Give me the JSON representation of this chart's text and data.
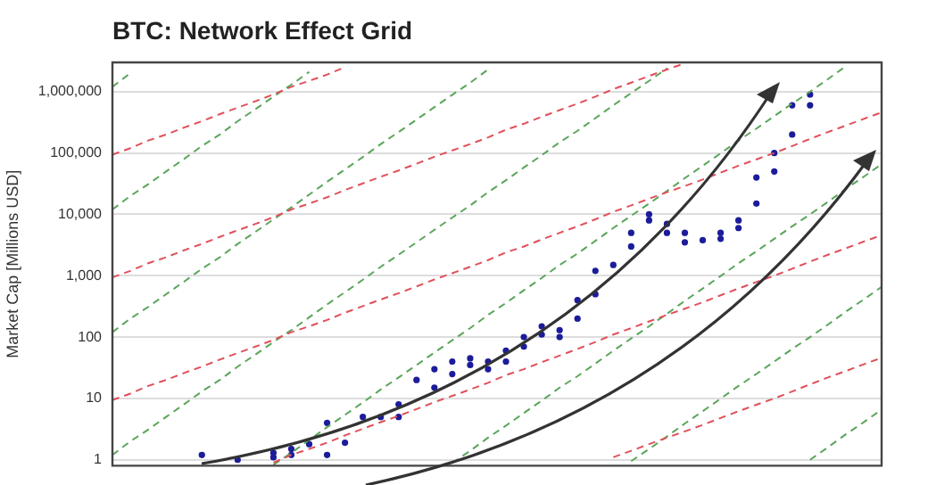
{
  "chart_data": {
    "type": "scatter",
    "title": "BTC: Network Effect Grid",
    "ylabel": "Market Cap [Millions USD]",
    "categories": [
      null,
      null,
      null,
      null,
      null,
      null,
      null,
      null,
      null,
      null,
      null,
      null,
      null,
      null,
      null,
      null,
      null,
      null,
      null,
      null,
      null,
      null,
      null,
      null,
      null,
      null,
      null,
      null,
      null,
      null,
      null,
      null,
      null,
      null,
      null,
      null,
      null,
      null,
      null,
      null,
      null,
      null,
      null,
      null
    ],
    "log": "y",
    "grid": "y",
    "legend": false,
    "tick_labels": "y",
    "marker": "circle",
    "ylim": [
      0.8,
      3000000
    ],
    "yticks": [
      {
        "value": 1,
        "label": "1"
      },
      {
        "value": 10,
        "label": "10"
      },
      {
        "value": 100,
        "label": "100"
      },
      {
        "value": 1000,
        "label": "1,000"
      },
      {
        "value": 10000,
        "label": "10,000"
      },
      {
        "value": 100000,
        "label": "100,000"
      },
      {
        "value": 1000000,
        "label": "1,000,000"
      }
    ],
    "series": [
      {
        "type": "line",
        "color": "#e0505a",
        "line_style": "dashed",
        "marker": "none",
        "values": [
          94000,
          120000,
          160000,
          200000,
          260000,
          330000,
          430000,
          550000,
          700000,
          900000,
          1200000,
          1500000,
          1900000,
          2500000,
          null,
          null,
          null,
          null,
          null,
          null,
          null,
          null,
          null,
          null,
          null,
          null,
          null,
          null,
          null,
          null,
          null,
          null,
          null,
          null,
          null,
          null,
          null,
          null,
          null,
          null,
          null,
          null,
          null,
          null
        ]
      },
      {
        "type": "line",
        "color": "#e0505a",
        "line_style": "dashed",
        "marker": "none",
        "values": [
          940,
          1200,
          1600,
          2000,
          2600,
          3300,
          4300,
          5500,
          7000,
          9000,
          12000,
          15000,
          19000,
          25000,
          32000,
          41000,
          52000,
          67000,
          87000,
          110000,
          140000,
          180000,
          240000,
          300000,
          390000,
          500000,
          640000,
          830000,
          1100000,
          1400000,
          1800000,
          2300000,
          2900000,
          null,
          null,
          null,
          null,
          null,
          null,
          null,
          null,
          null,
          null,
          null
        ]
      },
      {
        "type": "line",
        "color": "#e0505a",
        "line_style": "dashed",
        "marker": "none",
        "values": [
          9.4,
          12,
          16,
          20,
          26,
          33,
          43,
          55,
          70,
          90,
          120,
          150,
          190,
          250,
          320,
          410,
          520,
          670,
          870,
          1100,
          1400,
          1800,
          2400,
          3000,
          3900,
          5000,
          6400,
          8300,
          11000,
          14000,
          18000,
          23000,
          29000,
          37000,
          48000,
          62000,
          79000,
          100000,
          130000,
          170000,
          220000,
          280000,
          360000,
          460000
        ]
      },
      {
        "type": "line",
        "color": "#e0505a",
        "line_style": "dashed",
        "marker": "none",
        "values": [
          null,
          null,
          null,
          null,
          null,
          null,
          null,
          null,
          null,
          0.9,
          1.2,
          1.5,
          1.9,
          2.5,
          3.2,
          4.1,
          5.2,
          6.7,
          8.7,
          11,
          14,
          18,
          24,
          30,
          39,
          50,
          64,
          83,
          110,
          140,
          180,
          230,
          290,
          370,
          480,
          620,
          790,
          1000,
          1300,
          1700,
          2200,
          2800,
          3600,
          4600
        ]
      },
      {
        "type": "line",
        "color": "#e0505a",
        "line_style": "dashed",
        "marker": "none",
        "values": [
          null,
          null,
          null,
          null,
          null,
          null,
          null,
          null,
          null,
          null,
          null,
          null,
          null,
          null,
          null,
          null,
          null,
          null,
          null,
          null,
          null,
          null,
          null,
          null,
          null,
          null,
          null,
          null,
          1.1,
          1.4,
          1.8,
          2.3,
          2.9,
          3.7,
          4.8,
          6.2,
          7.9,
          10,
          13,
          17,
          22,
          28,
          36,
          46
        ]
      },
      {
        "type": "line",
        "color": "#5aa55a",
        "line_style": "dashed",
        "marker": "none",
        "values": [
          1200000,
          2000000,
          null,
          null,
          null,
          null,
          null,
          null,
          null,
          null,
          null,
          null,
          null,
          null,
          null,
          null,
          null,
          null,
          null,
          null,
          null,
          null,
          null,
          null,
          null,
          null,
          null,
          null,
          null,
          null,
          null,
          null,
          null,
          null,
          null,
          null,
          null,
          null,
          null,
          null,
          null,
          null,
          null,
          null
        ]
      },
      {
        "type": "line",
        "color": "#5aa55a",
        "line_style": "dashed",
        "marker": "none",
        "values": [
          12000,
          20000,
          31000,
          50000,
          80000,
          130000,
          200000,
          330000,
          520000,
          830000,
          1300000,
          2100000,
          null,
          null,
          null,
          null,
          null,
          null,
          null,
          null,
          null,
          null,
          null,
          null,
          null,
          null,
          null,
          null,
          null,
          null,
          null,
          null,
          null,
          null,
          null,
          null,
          null,
          null,
          null,
          null,
          null,
          null,
          null,
          null
        ]
      },
      {
        "type": "line",
        "color": "#5aa55a",
        "line_style": "dashed",
        "marker": "none",
        "values": [
          120,
          200,
          310,
          500,
          800,
          1300,
          2000,
          3300,
          5200,
          8300,
          13000,
          21000,
          34000,
          54000,
          86000,
          140000,
          220000,
          350000,
          560000,
          890000,
          1400000,
          2300000,
          null,
          null,
          null,
          null,
          null,
          null,
          null,
          null,
          null,
          null,
          null,
          null,
          null,
          null,
          null,
          null,
          null,
          null,
          null,
          null,
          null,
          null
        ]
      },
      {
        "type": "line",
        "color": "#5aa55a",
        "line_style": "dashed",
        "marker": "none",
        "values": [
          1.2,
          2.0,
          3.1,
          5.0,
          8.0,
          13,
          20,
          33,
          52,
          83,
          130,
          210,
          340,
          540,
          860,
          1400,
          2200,
          3500,
          5600,
          8900,
          14000,
          23000,
          36000,
          58000,
          92000,
          150000,
          230000,
          370000,
          600000,
          950000,
          1500000,
          2400000,
          null,
          null,
          null,
          null,
          null,
          null,
          null,
          null,
          null,
          null,
          null,
          null
        ]
      },
      {
        "type": "line",
        "color": "#5aa55a",
        "line_style": "dashed",
        "marker": "none",
        "values": [
          null,
          null,
          null,
          null,
          null,
          null,
          null,
          null,
          null,
          0.83,
          1.3,
          2.1,
          3.4,
          5.4,
          8.6,
          14,
          22,
          35,
          56,
          89,
          140,
          230,
          360,
          580,
          920,
          1500,
          2300,
          3700,
          6000,
          9500,
          15000,
          24000,
          39000,
          62000,
          99000,
          160000,
          250000,
          400000,
          640000,
          1000000,
          1600000,
          2600000,
          null,
          null
        ]
      },
      {
        "type": "line",
        "color": "#5aa55a",
        "line_style": "dashed",
        "marker": "none",
        "values": [
          null,
          null,
          null,
          null,
          null,
          null,
          null,
          null,
          null,
          null,
          null,
          null,
          null,
          null,
          null,
          null,
          null,
          null,
          null,
          0.89,
          1.4,
          2.3,
          3.6,
          5.8,
          9.2,
          15,
          23,
          37,
          60,
          95,
          150,
          240,
          390,
          620,
          990,
          1600,
          2500,
          4000,
          6400,
          10000,
          16000,
          26000,
          41000,
          66000
        ]
      },
      {
        "type": "line",
        "color": "#5aa55a",
        "line_style": "dashed",
        "marker": "none",
        "values": [
          null,
          null,
          null,
          null,
          null,
          null,
          null,
          null,
          null,
          null,
          null,
          null,
          null,
          null,
          null,
          null,
          null,
          null,
          null,
          null,
          null,
          null,
          null,
          null,
          null,
          null,
          null,
          null,
          null,
          0.95,
          1.5,
          2.4,
          3.9,
          6.2,
          9.9,
          16,
          25,
          40,
          64,
          100,
          160,
          260,
          410,
          660
        ]
      },
      {
        "type": "line",
        "color": "#5aa55a",
        "line_style": "dashed",
        "marker": "none",
        "values": [
          null,
          null,
          null,
          null,
          null,
          null,
          null,
          null,
          null,
          null,
          null,
          null,
          null,
          null,
          null,
          null,
          null,
          null,
          null,
          null,
          null,
          null,
          null,
          null,
          null,
          null,
          null,
          null,
          null,
          null,
          null,
          null,
          null,
          null,
          null,
          null,
          null,
          null,
          null,
          1.0,
          1.6,
          2.6,
          4.1,
          6.6
        ]
      },
      {
        "color": "#1c1c9a",
        "values": [
          null,
          null,
          null,
          null,
          null,
          1.2,
          null,
          1,
          null,
          1.3,
          1.5,
          1.8,
          4,
          1.9,
          5,
          5,
          5,
          20,
          30,
          40,
          45,
          40,
          60,
          70,
          110,
          100,
          200,
          1200,
          1500,
          3000,
          8000,
          7000,
          5000,
          3800,
          4000,
          6000,
          15000,
          100000,
          200000,
          900000,
          null,
          null,
          null,
          null
        ]
      },
      {
        "color": "#1c1c9a",
        "values": [
          null,
          null,
          null,
          null,
          null,
          null,
          null,
          null,
          null,
          1.1,
          1.2,
          null,
          1.2,
          null,
          null,
          null,
          8,
          null,
          15,
          25,
          35,
          30,
          40,
          100,
          150,
          130,
          400,
          500,
          null,
          5000,
          10000,
          5000,
          3500,
          null,
          5000,
          8000,
          40000,
          50000,
          600000,
          600000,
          null,
          null,
          null,
          null
        ]
      }
    ]
  }
}
